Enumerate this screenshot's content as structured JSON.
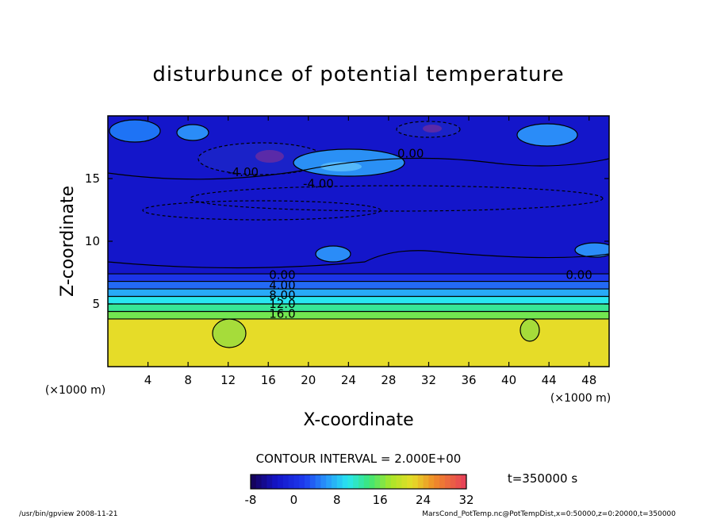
{
  "chart_data": {
    "type": "heatmap",
    "title": "disturbunce of potential temperature",
    "xlabel": "X-coordinate",
    "ylabel": "Z-coordinate",
    "x_unit_left": "(×1000 m)",
    "x_unit_right": "(×1000 m)",
    "xlim": [
      0,
      50
    ],
    "ylim": [
      0,
      20
    ],
    "x_ticks": [
      4,
      8,
      12,
      16,
      20,
      24,
      28,
      32,
      36,
      40,
      44,
      48
    ],
    "x_tick_labels": [
      "4",
      "8",
      "12",
      "16",
      "20",
      "24",
      "28",
      "32",
      "36",
      "40",
      "44",
      "48"
    ],
    "y_ticks": [
      5,
      10,
      15
    ],
    "y_tick_labels": [
      "5",
      "10",
      "15"
    ],
    "contour_interval": "CONTOUR INTERVAL = 2.000E+00",
    "time_label": "t=350000 s",
    "colorbar": {
      "min": -8,
      "max": 32,
      "ticks": [
        -8,
        0,
        8,
        16,
        24,
        32
      ],
      "tick_labels": [
        "-8",
        "0",
        "8",
        "16",
        "24",
        "32"
      ]
    },
    "contour_labels": [
      {
        "text": "0.00",
        "x": 30.2,
        "z": 17.0
      },
      {
        "text": "-4.00",
        "x": 13.5,
        "z": 15.5
      },
      {
        "text": "-4.00",
        "x": 21.0,
        "z": 14.6
      },
      {
        "text": "0.00",
        "x": 17.4,
        "z": 7.3
      },
      {
        "text": "4.00",
        "x": 17.4,
        "z": 6.5
      },
      {
        "text": "8.00",
        "x": 17.4,
        "z": 5.7
      },
      {
        "text": "12.0",
        "x": 17.4,
        "z": 5.0
      },
      {
        "text": "16.0",
        "x": 17.4,
        "z": 4.2
      },
      {
        "text": "0.00",
        "x": 47.0,
        "z": 7.3
      }
    ],
    "layers": [
      {
        "z0": 0,
        "z1": 3.8,
        "value": 22
      },
      {
        "z0": 3.8,
        "z1": 4.4,
        "value": 16
      },
      {
        "z0": 4.4,
        "z1": 5.0,
        "value": 13
      },
      {
        "z0": 5.0,
        "z1": 5.6,
        "value": 10
      },
      {
        "z0": 5.6,
        "z1": 6.2,
        "value": 7
      },
      {
        "z0": 6.2,
        "z1": 6.8,
        "value": 4
      },
      {
        "z0": 6.8,
        "z1": 7.4,
        "value": 1
      },
      {
        "z0": 7.4,
        "z1": 20,
        "value": -3
      }
    ],
    "colors": {
      "contour": "#000000",
      "background": "#ffffff"
    }
  },
  "footer": {
    "left": "/usr/bin/gpview   2008-11-21",
    "right": "MarsCond_PotTemp.nc@PotTempDist,x=0:50000,z=0:20000,t=350000"
  }
}
